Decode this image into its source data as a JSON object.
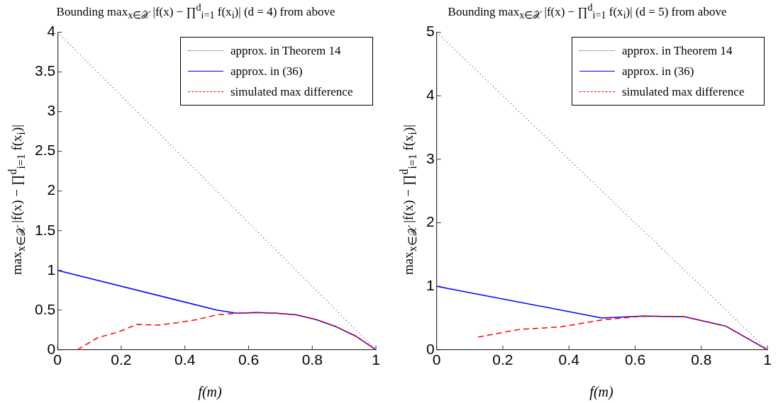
{
  "chart_data": [
    {
      "type": "line",
      "title": "Bounding max$_{x∈𝒳}$ |f(x) − ∏$^{d}$$_{i=1}$ f(x$_{i}$)| (d = 4) from above",
      "xlabel": "f(m)",
      "ylabel": "max$_{x∈𝒳}$ |f(x) − ∏$^{d}$$_{i=1}$ f(x$_{i}$)|",
      "xlim": [
        0,
        1
      ],
      "xticks": [
        0,
        0.2,
        0.4,
        0.6,
        0.8,
        1
      ],
      "ylim": [
        0,
        4
      ],
      "yticks": [
        0,
        0.5,
        1,
        1.5,
        2,
        2.5,
        3,
        3.5,
        4
      ],
      "grid": false,
      "legend": "top right",
      "marker": "none",
      "series": [
        {
          "name": "approx. in Theorem 14",
          "color": "#555555",
          "line_style": "dotted",
          "x": [
            0,
            1
          ],
          "values": [
            4,
            0
          ]
        },
        {
          "name": "approx. in (36)",
          "color": "#0000ff",
          "line_style": "solid",
          "x": [
            0,
            0.5,
            0.5625,
            0.625,
            0.6875,
            0.75,
            0.8125,
            0.875,
            0.9375,
            1
          ],
          "values": [
            1,
            0.5,
            0.46,
            0.47,
            0.46,
            0.44,
            0.38,
            0.29,
            0.17,
            0
          ]
        },
        {
          "name": "simulated max difference",
          "color": "#ff0000",
          "line_style": "dashed",
          "x": [
            0.0625,
            0.125,
            0.1875,
            0.25,
            0.3125,
            0.375,
            0.4375,
            0.5,
            0.5625,
            0.625,
            0.6875,
            0.75,
            0.8125,
            0.875,
            0.9375,
            1
          ],
          "values": [
            0,
            0.15,
            0.22,
            0.32,
            0.31,
            0.34,
            0.38,
            0.44,
            0.46,
            0.47,
            0.46,
            0.44,
            0.38,
            0.29,
            0.17,
            0
          ]
        }
      ]
    },
    {
      "type": "line",
      "title": "Bounding max$_{x∈𝒳}$ |f(x) − ∏$^{d}$$_{i=1}$ f(x$_{i}$)| (d = 5) from above",
      "xlabel": "f(m)",
      "ylabel": "max$_{x∈𝒳}$ |f(x) − ∏$^{d}$$_{i=1}$ f(x$_{i}$)|",
      "xlim": [
        0,
        1
      ],
      "xticks": [
        0,
        0.2,
        0.4,
        0.6,
        0.8,
        1
      ],
      "ylim": [
        0,
        5
      ],
      "yticks": [
        0,
        1,
        2,
        3,
        4,
        5
      ],
      "grid": false,
      "legend": "top right",
      "marker": "none",
      "series": [
        {
          "name": "approx. in Theorem 14",
          "color": "#555555",
          "line_style": "dotted",
          "x": [
            0,
            1
          ],
          "values": [
            5,
            0
          ]
        },
        {
          "name": "approx. in (36)",
          "color": "#0000ff",
          "line_style": "solid",
          "x": [
            0,
            0.5,
            0.625,
            0.75,
            0.875,
            1
          ],
          "values": [
            1,
            0.5,
            0.53,
            0.52,
            0.37,
            0
          ]
        },
        {
          "name": "simulated max difference",
          "color": "#ff0000",
          "line_style": "dashed",
          "x": [
            0.125,
            0.25,
            0.375,
            0.5,
            0.625,
            0.75,
            0.875,
            1
          ],
          "values": [
            0.2,
            0.32,
            0.36,
            0.47,
            0.53,
            0.52,
            0.37,
            0
          ]
        }
      ]
    }
  ]
}
